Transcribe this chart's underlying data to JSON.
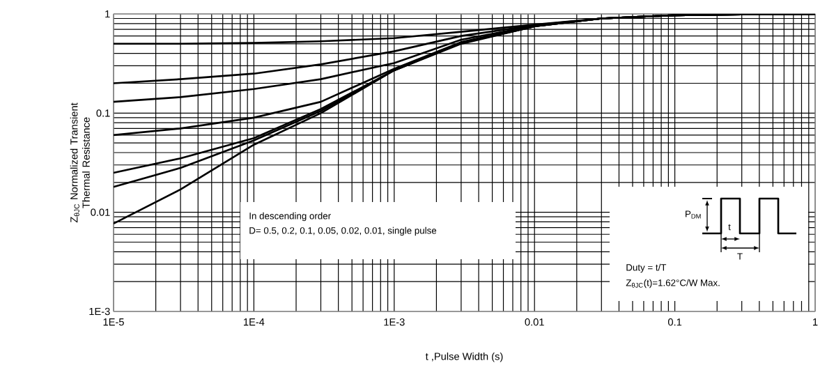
{
  "chart_data": {
    "type": "line",
    "xlabel": "t ,Pulse Width (s)",
    "ylabel": "Z$_{θJC}$ Normalized Transient Thermal Resistance",
    "x": [
      1e-05,
      3e-05,
      0.0001,
      0.0003,
      0.001,
      0.003,
      0.01,
      0.03,
      0.1,
      0.3,
      1
    ],
    "series": [
      {
        "color": "#000000",
        "values": [
          0.5,
          0.5,
          0.51,
          0.53,
          0.57,
          0.66,
          0.78,
          0.9,
          0.97,
          0.99,
          1
        ]
      },
      {
        "color": "#000000",
        "values": [
          0.2,
          0.22,
          0.25,
          0.31,
          0.42,
          0.6,
          0.77,
          0.9,
          0.97,
          0.99,
          1
        ]
      },
      {
        "color": "#000000",
        "values": [
          0.13,
          0.145,
          0.175,
          0.22,
          0.32,
          0.55,
          0.76,
          0.9,
          0.97,
          0.99,
          1
        ]
      },
      {
        "color": "#000000",
        "values": [
          0.06,
          0.07,
          0.09,
          0.13,
          0.28,
          0.52,
          0.75,
          0.9,
          0.97,
          0.99,
          1
        ]
      },
      {
        "color": "#000000",
        "values": [
          0.025,
          0.035,
          0.056,
          0.11,
          0.27,
          0.51,
          0.75,
          0.9,
          0.97,
          0.99,
          1
        ]
      },
      {
        "color": "#000000",
        "values": [
          0.018,
          0.028,
          0.053,
          0.105,
          0.27,
          0.51,
          0.75,
          0.9,
          0.97,
          0.99,
          1
        ]
      },
      {
        "color": "#000000",
        "values": [
          0.0077,
          0.017,
          0.048,
          0.1,
          0.27,
          0.5,
          0.75,
          0.9,
          0.97,
          0.99,
          1
        ]
      }
    ],
    "xlim": [
      1e-05,
      1
    ],
    "ylim": [
      0.001,
      1
    ],
    "xticks": [
      {
        "value": 1e-05,
        "label": "1E-5"
      },
      {
        "value": 0.0001,
        "label": "1E-4"
      },
      {
        "value": 0.001,
        "label": "1E-3"
      },
      0.01,
      0.1,
      1
    ],
    "yticks": [
      {
        "value": 0.001,
        "label": "1E-3"
      },
      0.01,
      0.1,
      1
    ],
    "log": "xy",
    "grid": true,
    "marker": "none",
    "line_style": "solid",
    "annotations": [
      "In descending order",
      "D= 0.5, 0.2, 0.1, 0.05, 0.02, 0.01, single pulse",
      "Duty = t/T",
      "Z$_{θJC}$(t)=1.62°C/W Max.",
      "P$_{DM}$",
      "t",
      "T"
    ]
  }
}
